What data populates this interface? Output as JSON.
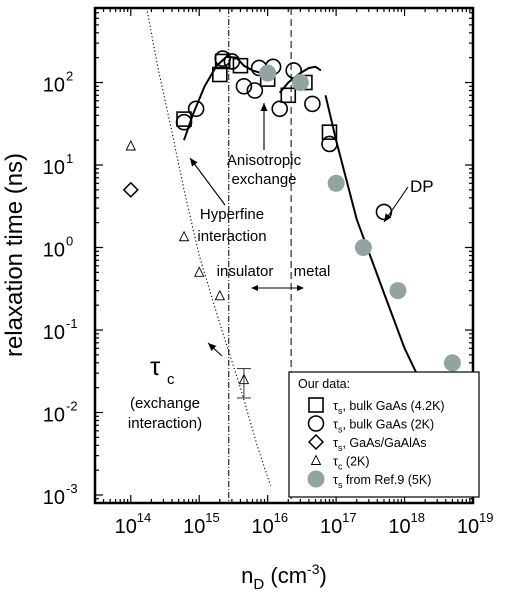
{
  "chart_data": {
    "type": "scatter",
    "xlabel": "n_D (cm^-3)",
    "ylabel": "relaxation time (ns)",
    "xscale": "log",
    "yscale": "log",
    "xlim": [
      30000000000000.0,
      1e+19
    ],
    "ylim": [
      0.0008,
      800
    ],
    "x_ticks": [
      {
        "base": "10",
        "exp": "14",
        "value": 100000000000000.0
      },
      {
        "base": "10",
        "exp": "15",
        "value": 1000000000000000.0
      },
      {
        "base": "10",
        "exp": "16",
        "value": 1e+16
      },
      {
        "base": "10",
        "exp": "17",
        "value": 1e+17
      },
      {
        "base": "10",
        "exp": "18",
        "value": 1e+18
      },
      {
        "base": "10",
        "exp": "19",
        "value": 1e+19
      }
    ],
    "y_ticks": [
      {
        "base": "10",
        "exp": "-3",
        "value": 0.001
      },
      {
        "base": "10",
        "exp": "-2",
        "value": 0.01
      },
      {
        "base": "10",
        "exp": "-1",
        "value": 0.1
      },
      {
        "base": "10",
        "exp": "0",
        "value": 1
      },
      {
        "base": "10",
        "exp": "1",
        "value": 10
      },
      {
        "base": "10",
        "exp": "2",
        "value": 100
      }
    ],
    "series": [
      {
        "name": "τs, bulk GaAs (4.2K)",
        "marker": "square",
        "points": [
          [
            600000000000000.0,
            36
          ],
          [
            2000000000000000.0,
            125
          ],
          [
            2200000000000000.0,
            180
          ],
          [
            4000000000000000.0,
            160
          ],
          [
            1e+16,
            110
          ],
          [
            2e+16,
            70
          ],
          [
            3.5e+16,
            100
          ],
          [
            8e+16,
            25
          ]
        ]
      },
      {
        "name": "τs, bulk GaAs (2K)",
        "marker": "circle",
        "points": [
          [
            600000000000000.0,
            33
          ],
          [
            900000000000000.0,
            48
          ],
          [
            2200000000000000.0,
            195
          ],
          [
            3000000000000000.0,
            180
          ],
          [
            4500000000000000.0,
            90
          ],
          [
            6500000000000000.0,
            80
          ],
          [
            7500000000000000.0,
            150
          ],
          [
            1.2e+16,
            155
          ],
          [
            1.5e+16,
            48
          ],
          [
            2.4e+16,
            140
          ],
          [
            3e+16,
            100
          ],
          [
            4.5e+16,
            55
          ],
          [
            8e+16,
            18
          ],
          [
            5e+17,
            2.7
          ]
        ]
      },
      {
        "name": "τs, GaAs/GaAlAs",
        "marker": "diamond",
        "points": [
          [
            100000000000000.0,
            5
          ]
        ]
      },
      {
        "name": "τc (2K)",
        "marker": "triangle",
        "points": [
          [
            100000000000000.0,
            17
          ],
          [
            600000000000000.0,
            1.35
          ],
          [
            1000000000000000.0,
            0.5
          ],
          [
            2000000000000000.0,
            0.26
          ],
          [
            4500000000000000.0,
            0.025
          ]
        ],
        "error_bar": {
          "x": 4500000000000000.0,
          "low": 0.015,
          "high": 0.034
        }
      },
      {
        "name": "τs from Ref.9 (5K)",
        "marker": "filled-circle",
        "color": "#90a4a2",
        "points": [
          [
            1e+16,
            130
          ],
          [
            3e+16,
            100
          ],
          [
            1e+17,
            6
          ],
          [
            2.5e+17,
            1
          ],
          [
            8e+17,
            0.3
          ],
          [
            5e+18,
            0.04
          ]
        ]
      }
    ],
    "curves": [
      {
        "name": "hyperfine",
        "style": "solid",
        "points": [
          [
            600000000000000.0,
            20
          ],
          [
            800000000000000.0,
            40
          ],
          [
            1200000000000000.0,
            90
          ],
          [
            1800000000000000.0,
            160
          ],
          [
            2500000000000000.0,
            205
          ],
          [
            3500000000000000.0,
            200
          ],
          [
            4500000000000000.0,
            160
          ],
          [
            6000000000000000.0,
            140
          ],
          [
            8000000000000000.0,
            130
          ]
        ]
      },
      {
        "name": "anisotropic",
        "style": "solid",
        "points": [
          [
            1.5e+16,
            75
          ],
          [
            2e+16,
            100
          ],
          [
            3e+16,
            130
          ],
          [
            4e+16,
            150
          ],
          [
            5e+16,
            155
          ],
          [
            6e+16,
            140
          ]
        ]
      },
      {
        "name": "DP",
        "style": "solid",
        "points": [
          [
            7e+16,
            70
          ],
          [
            1e+17,
            20
          ],
          [
            2e+17,
            2.2
          ],
          [
            5e+17,
            0.28
          ],
          [
            1e+18,
            0.06
          ],
          [
            2e+18,
            0.018
          ],
          [
            3e+18,
            0.009
          ]
        ]
      },
      {
        "name": "exchange",
        "style": "dotted",
        "points": [
          [
            170000000000000.0,
            800
          ],
          [
            250000000000000.0,
            150
          ],
          [
            400000000000000.0,
            25
          ],
          [
            600000000000000.0,
            5
          ],
          [
            1000000000000000.0,
            0.8
          ],
          [
            2000000000000000.0,
            0.12
          ],
          [
            4000000000000000.0,
            0.02
          ],
          [
            7000000000000000.0,
            0.004
          ],
          [
            1.1e+16,
            0.0013
          ]
        ]
      }
    ],
    "vlines": [
      {
        "x": 2700000000000000.0,
        "style": "dashdot"
      },
      {
        "x": 2.2e+16,
        "style": "dashed"
      }
    ],
    "annotations": {
      "anisotropic_line1": "Anisotropic",
      "anisotropic_line2": "exchange",
      "hyperfine_line1": "Hyperfine",
      "hyperfine_line2": "interaction",
      "dp": "DP",
      "insulator": "insulator",
      "metal": "metal",
      "tau_symbol": "τ",
      "tau_sub": "c",
      "exchange_line1": "(exchange",
      "exchange_line2": "interaction)"
    },
    "legend": {
      "title": "Our data:",
      "position": "bottom-right",
      "entries": [
        {
          "marker": "square",
          "sym": "τ",
          "sub": "s",
          "text": ", bulk GaAs (4.2K)"
        },
        {
          "marker": "circle",
          "sym": "τ",
          "sub": "s",
          "text": ", bulk GaAs (2K)"
        },
        {
          "marker": "diamond",
          "sym": "τ",
          "sub": "s",
          "text": ", GaAs/GaAlAs"
        },
        {
          "marker": "triangle",
          "sym": "τ",
          "sub": "c",
          "text": " (2K)"
        },
        {
          "marker": "filled-circle",
          "sym": "τ",
          "sub": "s",
          "text": " from Ref.9 (5K)"
        }
      ]
    },
    "axis_titles": {
      "y": "relaxation time (ns)",
      "x_main": "n",
      "x_sub": "D",
      "x_unit": " (cm",
      "x_unit_exp": "-3",
      "x_close": ")"
    }
  }
}
